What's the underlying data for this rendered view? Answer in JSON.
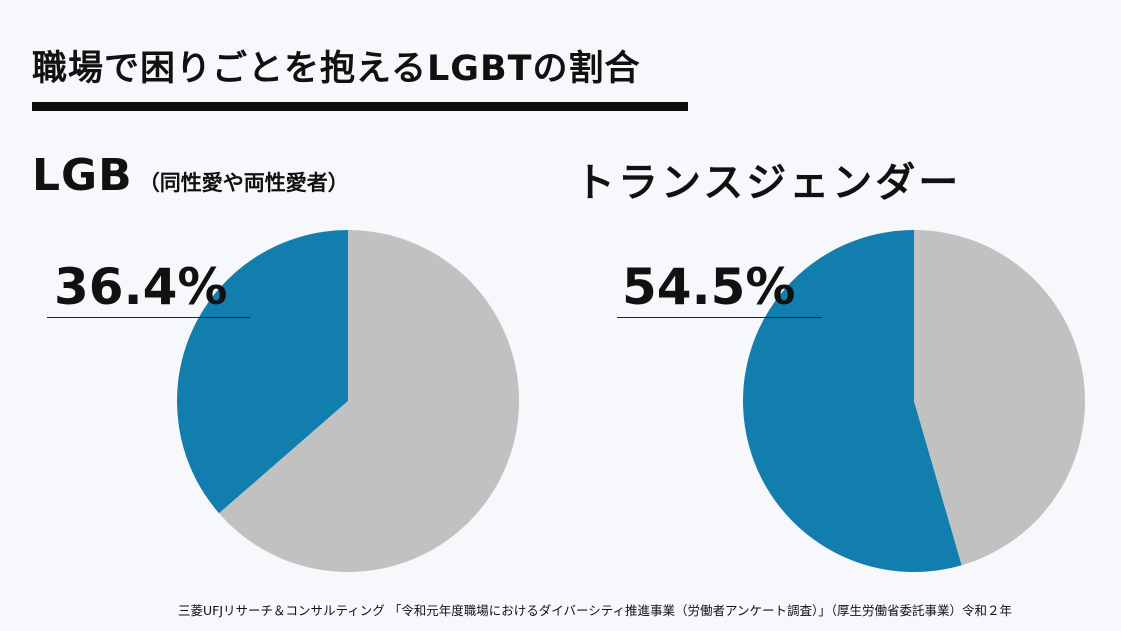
{
  "title": "職場で困りごとを抱えるLGBTの割合",
  "source": "三菱UFJリサーチ＆コンサルティング 「令和元年度職場におけるダイバーシティ推進事業（労働者アンケート調査）」（厚生労働省委託事業）令和２年",
  "colors": {
    "highlight": "#127ead",
    "rest": "#c1c1c1"
  },
  "chart_data": [
    {
      "type": "pie",
      "title": "LGB",
      "subtitle": "（同性愛や両性愛者）",
      "slices": [
        {
          "value": 36.4,
          "color": "#127ead"
        },
        {
          "value": 63.6,
          "color": "#c1c1c1"
        }
      ],
      "annotation": "36.4%"
    },
    {
      "type": "pie",
      "title": "トランスジェンダー",
      "slices": [
        {
          "value": 54.5,
          "color": "#127ead"
        },
        {
          "value": 45.5,
          "color": "#c1c1c1"
        }
      ],
      "annotation": "54.5%"
    }
  ]
}
